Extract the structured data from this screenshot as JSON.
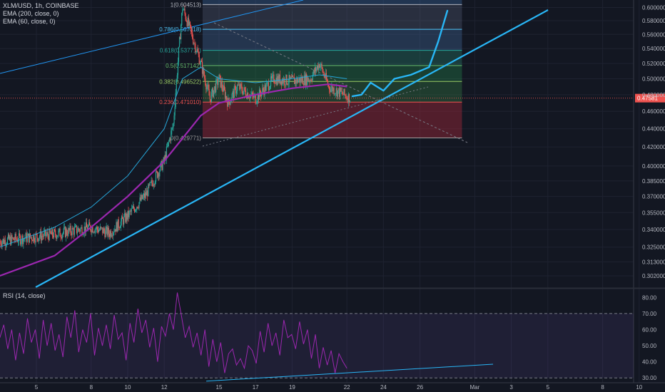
{
  "chart_data": [
    {
      "type": "candlestick",
      "symbol": "XLM/USD, 1h, COINBASE",
      "indicators": [
        "EMA (200, close, 0)",
        "EMA (60, close, 0)"
      ],
      "y_tick_labels": [
        "0.600000",
        "0.580000",
        "0.560000",
        "0.540000",
        "0.520000",
        "0.500000",
        "0.480000",
        "0.460000",
        "0.440000",
        "0.420000",
        "0.400000",
        "0.385000",
        "0.370000",
        "0.355000",
        "0.340000",
        "0.325000",
        "0.313000",
        "0.302000"
      ],
      "x_tick_labels": [
        "5",
        "8",
        "10",
        "12",
        "15",
        "17",
        "19",
        "22",
        "24",
        "26",
        "Mar",
        "3",
        "5",
        "8",
        "10"
      ],
      "price_label": "0.47581",
      "last_price": 0.4758,
      "price_range": [
        0.296,
        0.606
      ],
      "log_scale": true,
      "fibonacci": [
        {
          "label": "1(0.604513)",
          "level": 0.604513
        },
        {
          "label": "0.786(0.567318)",
          "level": 0.567318
        },
        {
          "label": "0.618(0.537711)",
          "level": 0.537711
        },
        {
          "label": "0.5(0.517142)",
          "level": 0.517142
        },
        {
          "label": "0.382(0.496522)",
          "level": 0.496522
        },
        {
          "label": "0.236(0.471010)",
          "level": 0.47101
        },
        {
          "label": "0(0.429771)",
          "level": 0.429771
        }
      ],
      "price_path": [
        [
          3,
          0.33
        ],
        [
          6,
          0.336
        ],
        [
          8,
          0.342
        ],
        [
          9,
          0.337
        ],
        [
          10,
          0.352
        ],
        [
          11,
          0.372
        ],
        [
          12,
          0.405
        ],
        [
          12.5,
          0.445
        ],
        [
          13,
          0.6
        ],
        [
          13.5,
          0.56
        ],
        [
          14,
          0.52
        ],
        [
          14.5,
          0.475
        ],
        [
          15,
          0.5
        ],
        [
          15.5,
          0.47
        ],
        [
          16,
          0.49
        ],
        [
          17,
          0.475
        ],
        [
          18,
          0.5
        ],
        [
          19,
          0.497
        ],
        [
          20,
          0.5
        ],
        [
          20.5,
          0.52
        ],
        [
          21,
          0.49
        ],
        [
          22,
          0.478
        ],
        [
          22.2,
          0.4758
        ]
      ],
      "ema200_path": [
        [
          3,
          0.302
        ],
        [
          6,
          0.318
        ],
        [
          8,
          0.342
        ],
        [
          10,
          0.37
        ],
        [
          12,
          0.405
        ],
        [
          14,
          0.455
        ],
        [
          15,
          0.47
        ],
        [
          17,
          0.48
        ],
        [
          19,
          0.488
        ],
        [
          21,
          0.493
        ],
        [
          22,
          0.49
        ]
      ],
      "ema60_path": [
        [
          3,
          0.325
        ],
        [
          6,
          0.342
        ],
        [
          8,
          0.36
        ],
        [
          10,
          0.39
        ],
        [
          12,
          0.44
        ],
        [
          13,
          0.5
        ],
        [
          14,
          0.515
        ],
        [
          15,
          0.5
        ],
        [
          17,
          0.495
        ],
        [
          19,
          0.5
        ],
        [
          20.5,
          0.505
        ],
        [
          22,
          0.5
        ]
      ],
      "projection_path": [
        [
          22.3,
          0.478
        ],
        [
          22.8,
          0.48
        ],
        [
          23.3,
          0.495
        ],
        [
          24,
          0.485
        ],
        [
          24.6,
          0.5
        ],
        [
          25.5,
          0.505
        ],
        [
          26.5,
          0.515
        ],
        [
          27,
          0.55
        ],
        [
          27.5,
          0.595
        ]
      ]
    },
    {
      "type": "line",
      "title": "RSI (14, close)",
      "y_tick_labels": [
        "80.00",
        "70.00",
        "60.00",
        "50.00",
        "40.00",
        "30.00"
      ],
      "ylim": [
        27,
        85
      ],
      "band": [
        30,
        70
      ],
      "values": [
        55,
        63,
        48,
        60,
        41,
        58,
        45,
        67,
        52,
        60,
        42,
        66,
        50,
        64,
        47,
        57,
        43,
        68,
        55,
        72,
        46,
        60,
        52,
        70,
        44,
        61,
        50,
        63,
        48,
        69,
        54,
        58,
        41,
        64,
        52,
        73,
        58,
        66,
        49,
        61,
        40,
        62,
        56,
        70,
        60,
        83,
        69,
        55,
        62,
        49,
        58,
        44,
        60,
        37,
        54,
        40,
        52,
        33,
        45,
        48,
        38,
        42,
        36,
        50,
        47,
        39,
        59,
        46,
        64,
        50,
        58,
        44,
        66,
        55,
        57,
        48,
        65,
        51,
        60,
        42,
        57,
        36,
        49,
        38,
        47,
        33,
        45,
        40,
        36
      ]
    }
  ]
}
